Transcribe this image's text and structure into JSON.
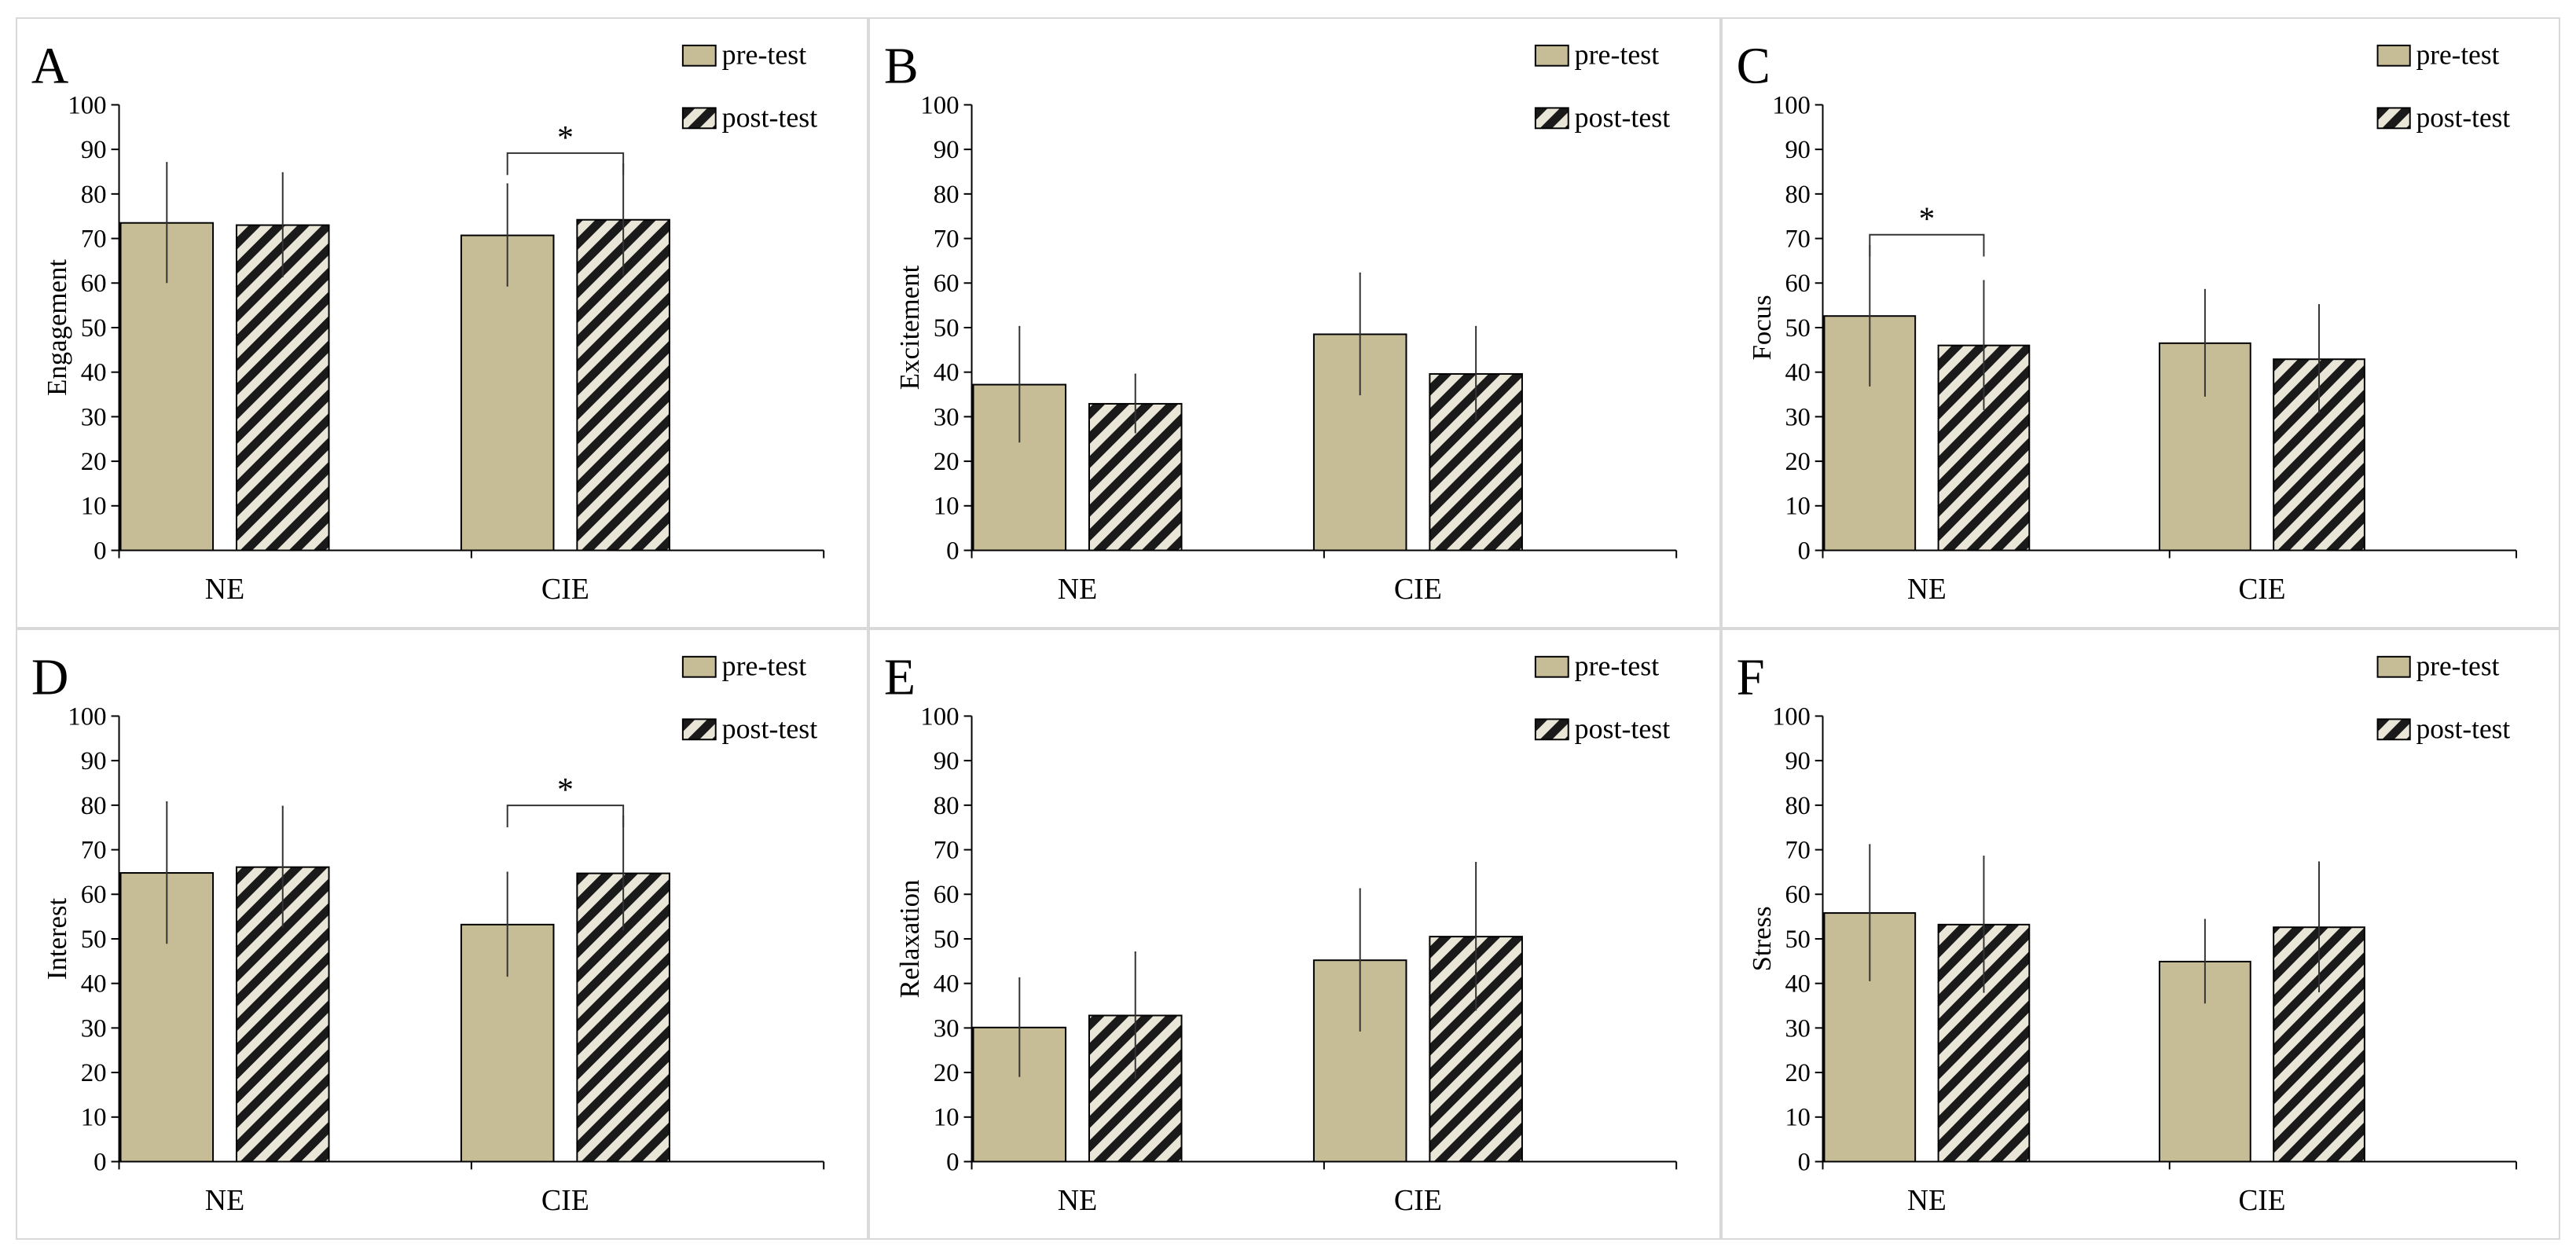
{
  "figure": {
    "legend": {
      "pre": "pre-test",
      "post": "post-test"
    },
    "colors": {
      "pre_fill": "#c6bc95",
      "post_stripe": "#1a1a1a",
      "post_bg": "#e9e6d8",
      "axis": "#000000",
      "panel_border": "#d9d9d9"
    }
  },
  "chart_data": [
    {
      "panel": "A",
      "type": "bar",
      "ylabel": "Engagement",
      "categories": [
        "NE",
        "CIE"
      ],
      "ylim": [
        0,
        100
      ],
      "yticks": [
        0,
        10,
        20,
        30,
        40,
        50,
        60,
        70,
        80,
        90,
        100
      ],
      "series": [
        {
          "name": "pre-test",
          "values": [
            73.5,
            70.7
          ],
          "errors": [
            13.5,
            11.5
          ]
        },
        {
          "name": "post-test",
          "values": [
            73.0,
            74.2
          ],
          "errors": [
            11.7,
            12.5
          ]
        }
      ],
      "significance": [
        {
          "category": "CIE",
          "label": "*"
        }
      ]
    },
    {
      "panel": "B",
      "type": "bar",
      "ylabel": "Excitement",
      "categories": [
        "NE",
        "CIE"
      ],
      "ylim": [
        0,
        100
      ],
      "yticks": [
        0,
        10,
        20,
        30,
        40,
        50,
        60,
        70,
        80,
        90,
        100
      ],
      "series": [
        {
          "name": "pre-test",
          "values": [
            37.2,
            48.5
          ],
          "errors": [
            13.0,
            13.7
          ]
        },
        {
          "name": "post-test",
          "values": [
            32.9,
            39.6
          ],
          "errors": [
            6.6,
            10.6
          ]
        }
      ],
      "significance": []
    },
    {
      "panel": "C",
      "type": "bar",
      "ylabel": "Focus",
      "categories": [
        "NE",
        "CIE"
      ],
      "ylim": [
        0,
        100
      ],
      "yticks": [
        0,
        10,
        20,
        30,
        40,
        50,
        60,
        70,
        80,
        90,
        100
      ],
      "series": [
        {
          "name": "pre-test",
          "values": [
            52.6,
            46.5
          ],
          "errors": [
            15.8,
            12.0
          ]
        },
        {
          "name": "post-test",
          "values": [
            46.0,
            42.9
          ],
          "errors": [
            14.5,
            12.2
          ]
        }
      ],
      "significance": [
        {
          "category": "NE",
          "label": "*"
        }
      ]
    },
    {
      "panel": "D",
      "type": "bar",
      "ylabel": "Interest",
      "categories": [
        "NE",
        "CIE"
      ],
      "ylim": [
        0,
        100
      ],
      "yticks": [
        0,
        10,
        20,
        30,
        40,
        50,
        60,
        70,
        80,
        90,
        100
      ],
      "series": [
        {
          "name": "pre-test",
          "values": [
            64.8,
            53.2
          ],
          "errors": [
            15.9,
            11.7
          ]
        },
        {
          "name": "post-test",
          "values": [
            66.1,
            64.7
          ],
          "errors": [
            13.6,
            12.8
          ]
        }
      ],
      "significance": [
        {
          "category": "CIE",
          "label": "*"
        }
      ]
    },
    {
      "panel": "E",
      "type": "bar",
      "ylabel": "Relaxation",
      "categories": [
        "NE",
        "CIE"
      ],
      "ylim": [
        0,
        100
      ],
      "yticks": [
        0,
        10,
        20,
        30,
        40,
        50,
        60,
        70,
        80,
        90,
        100
      ],
      "series": [
        {
          "name": "pre-test",
          "values": [
            30.1,
            45.2
          ],
          "errors": [
            11.1,
            16.0
          ]
        },
        {
          "name": "post-test",
          "values": [
            32.8,
            50.5
          ],
          "errors": [
            14.2,
            16.6
          ]
        }
      ],
      "significance": []
    },
    {
      "panel": "F",
      "type": "bar",
      "ylabel": "Stress",
      "categories": [
        "NE",
        "CIE"
      ],
      "ylim": [
        0,
        100
      ],
      "yticks": [
        0,
        10,
        20,
        30,
        40,
        50,
        60,
        70,
        80,
        90,
        100
      ],
      "series": [
        {
          "name": "pre-test",
          "values": [
            55.8,
            44.9
          ],
          "errors": [
            15.3,
            9.4
          ]
        },
        {
          "name": "post-test",
          "values": [
            53.2,
            52.6
          ],
          "errors": [
            15.3,
            14.6
          ]
        }
      ],
      "significance": []
    }
  ]
}
